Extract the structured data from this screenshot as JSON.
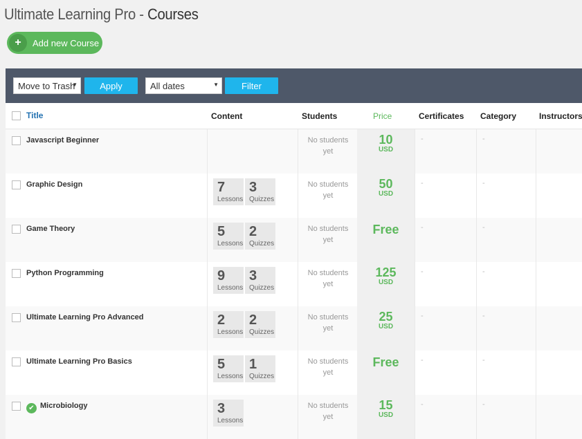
{
  "header": {
    "title_prefix": "Ultimate Learning Pro - ",
    "title_strong": "Courses",
    "add_button": "Add new Course"
  },
  "toolbar": {
    "bulk_action": "Move to Trash",
    "apply": "Apply",
    "dates": "All dates",
    "filter": "Filter"
  },
  "columns": {
    "title": "Title",
    "content": "Content",
    "students": "Students",
    "price": "Price",
    "certificates": "Certificates",
    "category": "Category",
    "instructors": "Instructors"
  },
  "rows": [
    {
      "title": "Javascript Beginner",
      "lessons": "",
      "lessons_label": "",
      "quizzes": "",
      "quizzes_label": "",
      "students": "No students yet",
      "price": "10",
      "currency": "USD",
      "certificates": "-",
      "category": "-"
    },
    {
      "title": "Graphic Design",
      "lessons": "7",
      "lessons_label": "Lessons",
      "quizzes": "3",
      "quizzes_label": "Quizzes",
      "students": "No students yet",
      "price": "50",
      "currency": "USD",
      "certificates": "-",
      "category": "-"
    },
    {
      "title": "Game Theory",
      "lessons": "5",
      "lessons_label": "Lessons",
      "quizzes": "2",
      "quizzes_label": "Quizzes",
      "students": "No students yet",
      "price": "Free",
      "currency": "",
      "certificates": "-",
      "category": "-"
    },
    {
      "title": "Python Programming",
      "lessons": "9",
      "lessons_label": "Lessons",
      "quizzes": "3",
      "quizzes_label": "Quizzes",
      "students": "No students yet",
      "price": "125",
      "currency": "USD",
      "certificates": "-",
      "category": "-"
    },
    {
      "title": "Ultimate Learning Pro Advanced",
      "lessons": "2",
      "lessons_label": "Lessons",
      "quizzes": "2",
      "quizzes_label": "Quizzes",
      "students": "No students yet",
      "price": "25",
      "currency": "USD",
      "certificates": "-",
      "category": "-"
    },
    {
      "title": "Ultimate Learning Pro Basics",
      "lessons": "5",
      "lessons_label": "Lessons",
      "quizzes": "1",
      "quizzes_label": "Quizzes",
      "students": "No students yet",
      "price": "Free",
      "currency": "",
      "certificates": "-",
      "category": "-"
    },
    {
      "title": "Microbiology",
      "lessons": "3",
      "lessons_label": "Lessons",
      "quizzes": "",
      "quizzes_label": "",
      "students": "No students yet",
      "price": "15",
      "currency": "USD",
      "certificates": "-",
      "category": "-",
      "featured_icon": "check-circle-icon"
    }
  ],
  "colors": {
    "accent_green": "#5cb85c",
    "button_blue": "#1fb5ec",
    "toolbar_bg": "#4e5869"
  }
}
